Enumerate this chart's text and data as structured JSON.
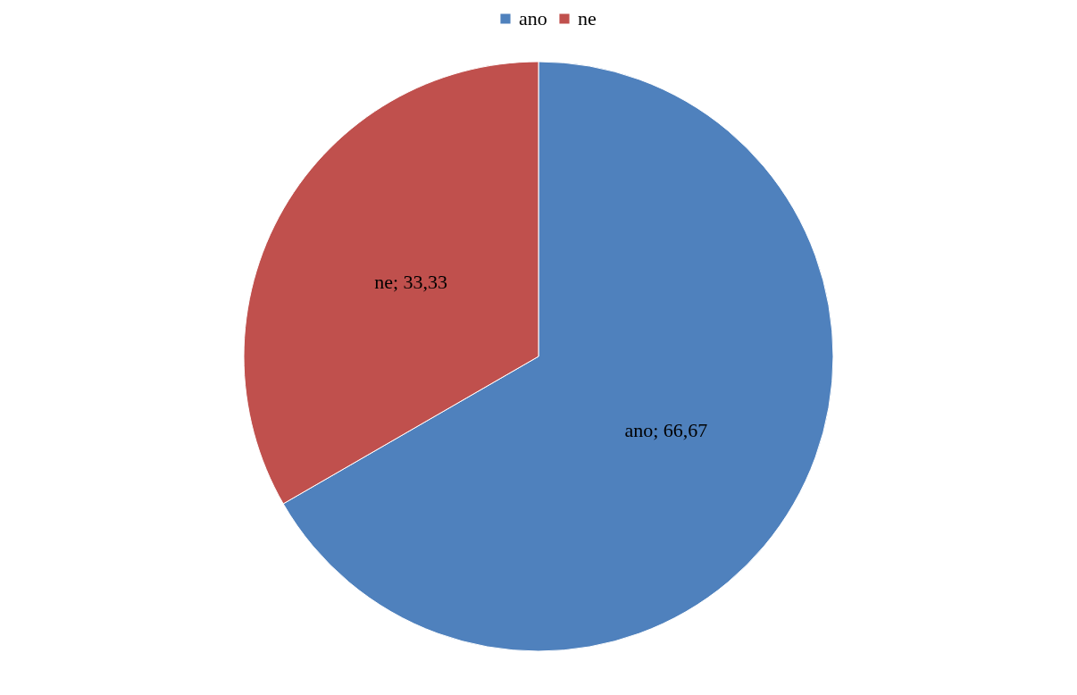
{
  "chart_data": {
    "type": "pie",
    "categories": [
      "ano",
      "ne"
    ],
    "values": [
      66.67,
      33.33
    ],
    "colors": [
      "#4f81bd",
      "#c0504d"
    ],
    "value_labels": [
      "ano; 66,67",
      "ne; 33,33"
    ],
    "legend": "top"
  }
}
